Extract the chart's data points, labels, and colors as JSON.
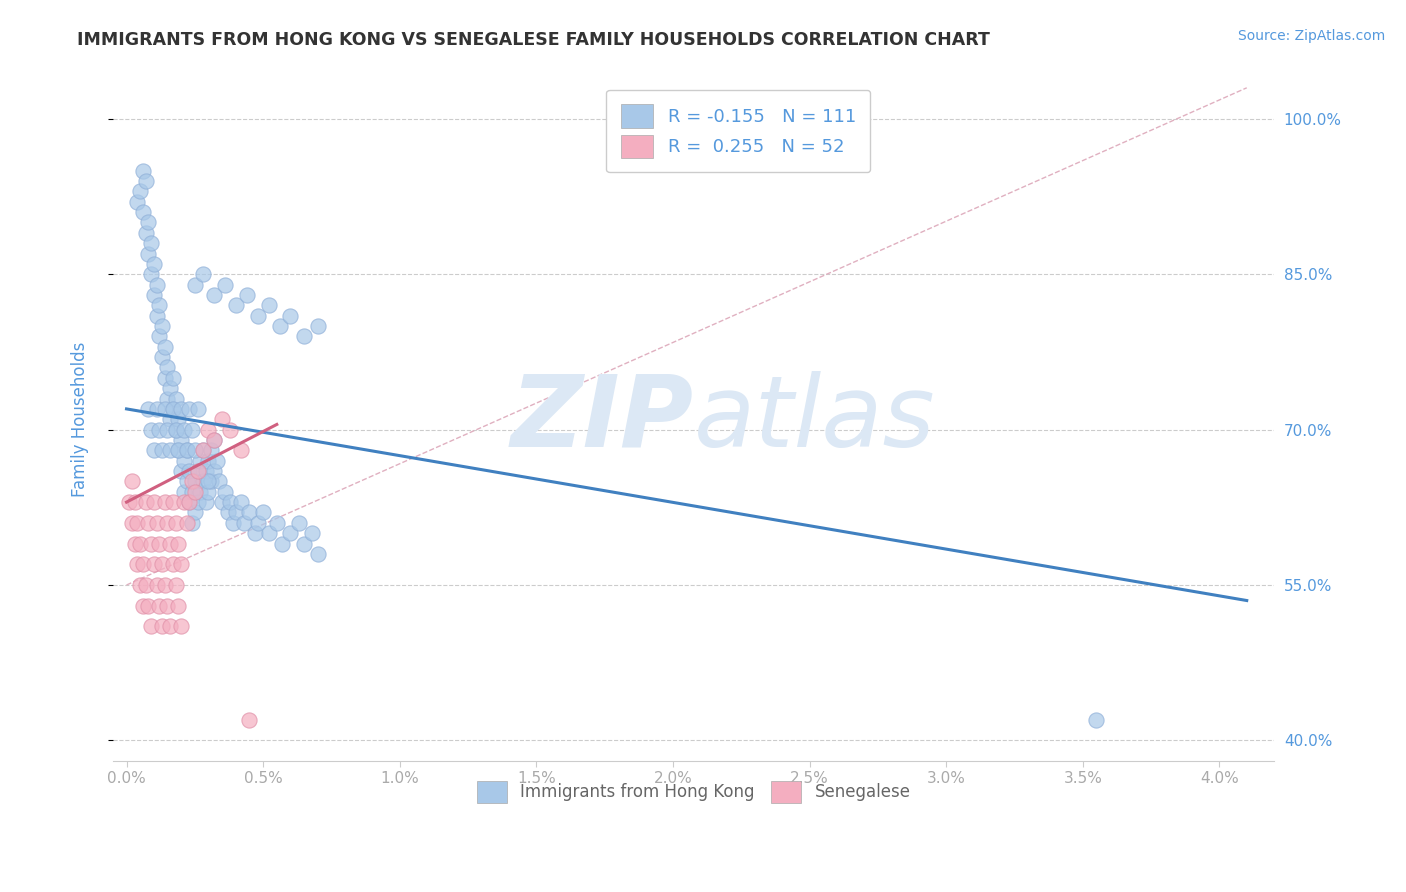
{
  "title": "IMMIGRANTS FROM HONG KONG VS SENEGALESE FAMILY HOUSEHOLDS CORRELATION CHART",
  "source": "Source: ZipAtlas.com",
  "ylabel": "Family Households",
  "xlim": [
    -0.05,
    4.2
  ],
  "ylim": [
    38.0,
    104.0
  ],
  "xtick_vals": [
    0.0,
    0.5,
    1.0,
    1.5,
    2.0,
    2.5,
    3.0,
    3.5,
    4.0
  ],
  "ytick_vals": [
    40.0,
    55.0,
    70.0,
    85.0,
    100.0
  ],
  "legend_labels": [
    "Immigrants from Hong Kong",
    "Senegalese"
  ],
  "r_hk": -0.155,
  "n_hk": 111,
  "r_sn": 0.255,
  "n_sn": 52,
  "color_hk": "#a8c8e8",
  "color_sn": "#f4aec0",
  "line_color_hk": "#4080c0",
  "line_color_sn": "#d06080",
  "watermark_top": "ZIP",
  "watermark_bottom": "atlas",
  "watermark_color": "#dce8f5",
  "background_color": "#ffffff",
  "title_color": "#333333",
  "axis_color": "#5599dd",
  "tick_color": "#aaaaaa",
  "grid_color": "#cccccc",
  "trendline_hk_x0": 0.0,
  "trendline_hk_y0": 72.0,
  "trendline_hk_x1": 4.1,
  "trendline_hk_y1": 53.5,
  "trendline_sn_x0": 0.0,
  "trendline_sn_y0": 63.0,
  "trendline_sn_x1": 0.55,
  "trendline_sn_y1": 70.5,
  "diag_x0": 0.0,
  "diag_y0": 55.0,
  "diag_x1": 4.1,
  "diag_y1": 103.0,
  "hk_x": [
    0.04,
    0.05,
    0.06,
    0.06,
    0.07,
    0.07,
    0.08,
    0.08,
    0.09,
    0.09,
    0.1,
    0.1,
    0.11,
    0.11,
    0.12,
    0.12,
    0.13,
    0.13,
    0.14,
    0.14,
    0.15,
    0.15,
    0.16,
    0.16,
    0.17,
    0.17,
    0.18,
    0.18,
    0.19,
    0.19,
    0.2,
    0.2,
    0.21,
    0.21,
    0.22,
    0.22,
    0.23,
    0.23,
    0.24,
    0.24,
    0.25,
    0.25,
    0.26,
    0.26,
    0.27,
    0.27,
    0.28,
    0.28,
    0.29,
    0.29,
    0.3,
    0.3,
    0.31,
    0.31,
    0.32,
    0.32,
    0.33,
    0.34,
    0.35,
    0.36,
    0.37,
    0.38,
    0.39,
    0.4,
    0.42,
    0.43,
    0.45,
    0.47,
    0.48,
    0.5,
    0.52,
    0.55,
    0.57,
    0.6,
    0.63,
    0.65,
    0.68,
    0.7,
    0.25,
    0.28,
    0.32,
    0.36,
    0.4,
    0.44,
    0.48,
    0.52,
    0.56,
    0.6,
    0.65,
    0.7,
    0.08,
    0.09,
    0.1,
    0.11,
    0.12,
    0.13,
    0.14,
    0.15,
    0.16,
    0.17,
    0.18,
    0.19,
    0.2,
    0.21,
    0.22,
    0.23,
    0.24,
    0.25,
    0.26,
    3.55,
    0.3
  ],
  "hk_y": [
    92.0,
    93.0,
    91.0,
    95.0,
    89.0,
    94.0,
    87.0,
    90.0,
    85.0,
    88.0,
    83.0,
    86.0,
    81.0,
    84.0,
    79.0,
    82.0,
    77.0,
    80.0,
    75.0,
    78.0,
    73.0,
    76.0,
    71.0,
    74.0,
    72.0,
    75.0,
    70.0,
    73.0,
    68.0,
    71.0,
    66.0,
    69.0,
    64.0,
    67.0,
    65.0,
    68.0,
    63.0,
    66.0,
    61.0,
    64.0,
    62.0,
    65.0,
    63.0,
    66.0,
    64.0,
    67.0,
    65.0,
    68.0,
    63.0,
    66.0,
    64.0,
    67.0,
    65.0,
    68.0,
    66.0,
    69.0,
    67.0,
    65.0,
    63.0,
    64.0,
    62.0,
    63.0,
    61.0,
    62.0,
    63.0,
    61.0,
    62.0,
    60.0,
    61.0,
    62.0,
    60.0,
    61.0,
    59.0,
    60.0,
    61.0,
    59.0,
    60.0,
    58.0,
    84.0,
    85.0,
    83.0,
    84.0,
    82.0,
    83.0,
    81.0,
    82.0,
    80.0,
    81.0,
    79.0,
    80.0,
    72.0,
    70.0,
    68.0,
    72.0,
    70.0,
    68.0,
    72.0,
    70.0,
    68.0,
    72.0,
    70.0,
    68.0,
    72.0,
    70.0,
    68.0,
    72.0,
    70.0,
    68.0,
    72.0,
    42.0,
    65.0
  ],
  "sn_x": [
    0.01,
    0.02,
    0.02,
    0.03,
    0.03,
    0.04,
    0.04,
    0.05,
    0.05,
    0.06,
    0.06,
    0.07,
    0.07,
    0.08,
    0.08,
    0.09,
    0.09,
    0.1,
    0.1,
    0.11,
    0.11,
    0.12,
    0.12,
    0.13,
    0.13,
    0.14,
    0.14,
    0.15,
    0.15,
    0.16,
    0.16,
    0.17,
    0.17,
    0.18,
    0.18,
    0.19,
    0.19,
    0.2,
    0.2,
    0.21,
    0.22,
    0.23,
    0.24,
    0.25,
    0.26,
    0.28,
    0.3,
    0.32,
    0.35,
    0.38,
    0.42,
    0.45
  ],
  "sn_y": [
    63.0,
    61.0,
    65.0,
    59.0,
    63.0,
    57.0,
    61.0,
    55.0,
    59.0,
    53.0,
    57.0,
    63.0,
    55.0,
    61.0,
    53.0,
    59.0,
    51.0,
    57.0,
    63.0,
    55.0,
    61.0,
    53.0,
    59.0,
    51.0,
    57.0,
    63.0,
    55.0,
    61.0,
    53.0,
    59.0,
    51.0,
    57.0,
    63.0,
    55.0,
    61.0,
    53.0,
    59.0,
    51.0,
    57.0,
    63.0,
    61.0,
    63.0,
    65.0,
    64.0,
    66.0,
    68.0,
    70.0,
    69.0,
    71.0,
    70.0,
    68.0,
    42.0
  ]
}
